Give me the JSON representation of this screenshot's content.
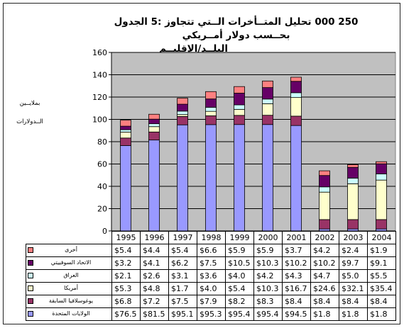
{
  "chart_data": {
    "type": "bar",
    "stacked": true,
    "title_lines": [
      "250 000 تحليل المتــأخرات الــتي تتجاوز :5 الجدول",
      "بحــسب دولار أمــريكي",
      "البلــد/الإقليــم"
    ],
    "ylabel_lines": [
      "بملايــين",
      "الــدولارات"
    ],
    "ylim": [
      0,
      160
    ],
    "yticks": [
      0,
      20,
      40,
      60,
      80,
      100,
      120,
      140,
      160
    ],
    "grid": true,
    "plot_background": "#c0c0c0",
    "categories": [
      "1995",
      "1996",
      "1997",
      "1998",
      "1999",
      "2000",
      "2001",
      "2002",
      "2003",
      "2004"
    ],
    "series": [
      {
        "name": "الولايات المتحدة",
        "color": "#9999ff",
        "values": [
          76.5,
          81.5,
          95.1,
          95.3,
          95.4,
          95.4,
          94.5,
          1.8,
          1.8,
          1.8
        ],
        "labels": [
          "$76.5",
          "$81.5",
          "$95.1",
          "$95.3",
          "$95.4",
          "$95.4",
          "$94.5",
          "$1.8",
          "$1.8",
          "$1.8"
        ]
      },
      {
        "name": "يوغوسلافيا السابقة",
        "color": "#993366",
        "values": [
          6.8,
          7.2,
          7.5,
          7.9,
          8.2,
          8.3,
          8.4,
          8.4,
          8.4,
          8.4
        ],
        "labels": [
          "$6.8",
          "$7.2",
          "$7.5",
          "$7.9",
          "$8.2",
          "$8.3",
          "$8.4",
          "$8.4",
          "$8.4",
          "$8.4"
        ]
      },
      {
        "name": "أمريكا",
        "color": "#ffffcc",
        "values": [
          5.3,
          4.8,
          1.7,
          4.0,
          5.4,
          10.3,
          16.7,
          24.6,
          32.1,
          35.4
        ],
        "labels": [
          "$5.3",
          "$4.8",
          "$1.7",
          "$4.0",
          "$5.4",
          "$10.3",
          "$16.7",
          "$24.6",
          "$32.1",
          "$35.4"
        ]
      },
      {
        "name": "العراق",
        "color": "#ccffff",
        "values": [
          2.1,
          2.6,
          3.1,
          3.6,
          4.0,
          4.2,
          4.3,
          4.7,
          5.0,
          5.5
        ],
        "labels": [
          "$2.1",
          "$2.6",
          "$3.1",
          "$3.6",
          "$4.0",
          "$4.2",
          "$4.3",
          "$4.7",
          "$5.0",
          "$5.5"
        ]
      },
      {
        "name": "الاتحاد السوفييتي",
        "color": "#660066",
        "values": [
          3.2,
          4.1,
          6.2,
          7.5,
          10.5,
          10.3,
          10.2,
          10.2,
          9.7,
          9.1
        ],
        "labels": [
          "$3.2",
          "$4.1",
          "$6.2",
          "$7.5",
          "$10.5",
          "$10.3",
          "$10.2",
          "$10.2",
          "$9.7",
          "$9.1"
        ]
      },
      {
        "name": "أخرى",
        "color": "#ff8080",
        "values": [
          5.4,
          4.4,
          5.4,
          6.6,
          5.9,
          5.9,
          3.7,
          4.2,
          2.4,
          1.9
        ],
        "labels": [
          "$5.4",
          "$4.4",
          "$5.4",
          "$6.6",
          "$5.9",
          "$5.9",
          "$3.7",
          "$4.2",
          "$2.4",
          "$1.9"
        ]
      }
    ],
    "table_row_order": [
      5,
      4,
      3,
      2,
      1,
      0
    ]
  }
}
